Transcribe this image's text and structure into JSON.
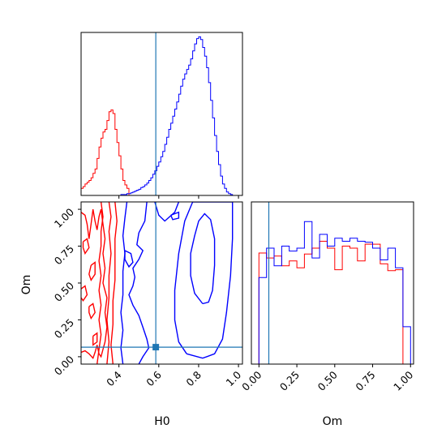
{
  "chart_data": {
    "type": "corner",
    "parameters": [
      "H0",
      "Om"
    ],
    "truth": {
      "H0": 0.585,
      "Om": 0.065
    },
    "colors": {
      "series_a": "#0000ff",
      "series_b": "#ff0000",
      "truth": "#1f77b4"
    },
    "panels": {
      "H0_hist": {
        "xlim": [
          0.21,
          1.02
        ],
        "x_ticks": [
          0.4,
          0.6,
          0.8,
          1.0
        ],
        "bin_edges": [
          0.21,
          0.22,
          0.23,
          0.24,
          0.25,
          0.26,
          0.27,
          0.28,
          0.29,
          0.3,
          0.31,
          0.32,
          0.33,
          0.34,
          0.35,
          0.36,
          0.37,
          0.38,
          0.39,
          0.4,
          0.41,
          0.42,
          0.43,
          0.44,
          0.45,
          0.46,
          0.47,
          0.48,
          0.49,
          0.5,
          0.51,
          0.52,
          0.53,
          0.54,
          0.55,
          0.56,
          0.57,
          0.58,
          0.59,
          0.6,
          0.61,
          0.62,
          0.63,
          0.64,
          0.65,
          0.66,
          0.67,
          0.68,
          0.69,
          0.7,
          0.71,
          0.72,
          0.73,
          0.74,
          0.75,
          0.76,
          0.77,
          0.78,
          0.79,
          0.8,
          0.81,
          0.82,
          0.83,
          0.84,
          0.85,
          0.86,
          0.87,
          0.88,
          0.89,
          0.9,
          0.91,
          0.92,
          0.93,
          0.94,
          0.95,
          0.96,
          0.97,
          0.98,
          0.99,
          1.0,
          1.01,
          1.02
        ],
        "ylim": [
          0,
          185
        ],
        "series_b": [
          8,
          10,
          13,
          15,
          17,
          20,
          25,
          30,
          42,
          55,
          65,
          72,
          75,
          85,
          95,
          97,
          93,
          75,
          60,
          45,
          30,
          17,
          12,
          8,
          0,
          0,
          0,
          0,
          0,
          0,
          0,
          0,
          0,
          0,
          0,
          0,
          0,
          0,
          0,
          0,
          0,
          0,
          0,
          0,
          0,
          0,
          0,
          0,
          0,
          0,
          0,
          0,
          0,
          0,
          0,
          0,
          0,
          0,
          0,
          0,
          0,
          0,
          0,
          0,
          0,
          0,
          0,
          0,
          0,
          0,
          0,
          0,
          0,
          0,
          0,
          0,
          0,
          0,
          0,
          0,
          0
        ],
        "series_a": [
          0,
          0,
          0,
          0,
          0,
          0,
          0,
          0,
          0,
          0,
          0,
          0,
          0,
          0,
          0,
          0,
          0,
          0,
          0,
          0,
          1,
          1,
          1,
          2,
          2,
          3,
          4,
          5,
          6,
          7,
          9,
          10,
          12,
          14,
          17,
          20,
          24,
          28,
          33,
          38,
          44,
          50,
          58,
          66,
          75,
          82,
          90,
          98,
          106,
          115,
          124,
          132,
          138,
          143,
          148,
          155,
          164,
          172,
          178,
          180,
          177,
          168,
          158,
          145,
          128,
          108,
          88,
          68,
          50,
          35,
          22,
          13,
          8,
          4,
          2,
          1,
          0,
          0,
          0,
          0,
          0
        ]
      },
      "Om_hist": {
        "xlim": [
          -0.05,
          1.02
        ],
        "x_ticks": [
          0.0,
          0.25,
          0.5,
          0.75,
          1.0
        ],
        "bin_edges": [
          0.0,
          0.05,
          0.1,
          0.15,
          0.2,
          0.25,
          0.3,
          0.35,
          0.4,
          0.45,
          0.5,
          0.55,
          0.6,
          0.65,
          0.7,
          0.75,
          0.8,
          0.85,
          0.9,
          0.95,
          1.0
        ],
        "ylim": [
          0,
          165
        ],
        "series_a": [
          88,
          118,
          100,
          120,
          115,
          118,
          145,
          108,
          132,
          120,
          128,
          125,
          128,
          125,
          124,
          118,
          106,
          118,
          98,
          38
        ],
        "series_b": [
          113,
          108,
          110,
          100,
          105,
          98,
          112,
          118,
          125,
          118,
          96,
          120,
          118,
          105,
          122,
          122,
          102,
          95,
          96,
          0
        ]
      },
      "H0_Om_contour": {
        "xlim": [
          0.21,
          1.02
        ],
        "ylim": [
          -0.05,
          1.05
        ],
        "series_a_contours": [
          [
            [
              0.82,
              0.36
            ],
            [
              0.78,
              0.43
            ],
            [
              0.76,
              0.55
            ],
            [
              0.76,
              0.7
            ],
            [
              0.78,
              0.82
            ],
            [
              0.8,
              0.92
            ],
            [
              0.83,
              0.97
            ],
            [
              0.86,
              0.93
            ],
            [
              0.88,
              0.8
            ],
            [
              0.88,
              0.62
            ],
            [
              0.87,
              0.45
            ],
            [
              0.85,
              0.37
            ],
            [
              0.82,
              0.36
            ]
          ],
          [
            [
              0.74,
              0.02
            ],
            [
              0.7,
              0.1
            ],
            [
              0.68,
              0.25
            ],
            [
              0.68,
              0.45
            ],
            [
              0.7,
              0.7
            ],
            [
              0.73,
              0.92
            ],
            [
              0.77,
              1.05
            ],
            [
              0.97,
              1.05
            ],
            [
              0.97,
              0.8
            ],
            [
              0.96,
              0.55
            ],
            [
              0.94,
              0.3
            ],
            [
              0.92,
              0.12
            ],
            [
              0.88,
              0.02
            ],
            [
              0.82,
              -0.01
            ],
            [
              0.74,
              0.02
            ]
          ],
          [
            [
              0.54,
              1.05
            ],
            [
              0.53,
              0.92
            ],
            [
              0.5,
              0.84
            ],
            [
              0.49,
              0.76
            ],
            [
              0.52,
              0.72
            ],
            [
              0.5,
              0.66
            ],
            [
              0.47,
              0.6
            ],
            [
              0.48,
              0.54
            ],
            [
              0.47,
              0.48
            ],
            [
              0.45,
              0.42
            ],
            [
              0.47,
              0.35
            ],
            [
              0.5,
              0.28
            ],
            [
              0.52,
              0.2
            ],
            [
              0.54,
              0.12
            ],
            [
              0.55,
              0.06
            ],
            [
              0.52,
              0.0
            ],
            [
              0.5,
              -0.05
            ]
          ],
          [
            [
              0.44,
              1.05
            ],
            [
              0.43,
              0.94
            ],
            [
              0.42,
              0.82
            ],
            [
              0.43,
              0.7
            ],
            [
              0.42,
              0.58
            ],
            [
              0.42,
              0.42
            ],
            [
              0.41,
              0.3
            ],
            [
              0.42,
              0.18
            ],
            [
              0.41,
              0.06
            ],
            [
              0.42,
              -0.05
            ]
          ],
          [
            [
              0.43,
              0.72
            ],
            [
              0.46,
              0.7
            ],
            [
              0.47,
              0.64
            ],
            [
              0.45,
              0.61
            ],
            [
              0.43,
              0.66
            ],
            [
              0.43,
              0.72
            ]
          ],
          [
            [
              0.58,
              1.05
            ],
            [
              0.6,
              0.96
            ],
            [
              0.63,
              0.92
            ],
            [
              0.68,
              0.98
            ],
            [
              0.7,
              1.05
            ]
          ],
          [
            [
              0.66,
              0.96
            ],
            [
              0.7,
              0.98
            ],
            [
              0.7,
              0.94
            ],
            [
              0.67,
              0.93
            ],
            [
              0.66,
              0.96
            ]
          ]
        ],
        "series_b_contours": [
          [
            [
              0.21,
              0.98
            ],
            [
              0.23,
              0.96
            ],
            [
              0.24,
              0.9
            ],
            [
              0.25,
              0.8
            ],
            [
              0.26,
              0.9
            ],
            [
              0.27,
              1.0
            ],
            [
              0.28,
              0.92
            ],
            [
              0.29,
              0.86
            ],
            [
              0.3,
              0.95
            ],
            [
              0.31,
              1.0
            ],
            [
              0.32,
              0.9
            ],
            [
              0.33,
              0.8
            ],
            [
              0.32,
              0.7
            ],
            [
              0.33,
              0.6
            ],
            [
              0.32,
              0.5
            ],
            [
              0.34,
              0.4
            ],
            [
              0.33,
              0.3
            ],
            [
              0.34,
              0.2
            ],
            [
              0.33,
              0.1
            ],
            [
              0.32,
              0.05
            ],
            [
              0.31,
              0.0
            ],
            [
              0.3,
              0.02
            ],
            [
              0.29,
              0.08
            ],
            [
              0.28,
              0.03
            ],
            [
              0.27,
              -0.01
            ],
            [
              0.25,
              0.02
            ],
            [
              0.23,
              0.04
            ],
            [
              0.21,
              0.03
            ]
          ],
          [
            [
              0.31,
              1.05
            ],
            [
              0.32,
              0.95
            ],
            [
              0.31,
              0.85
            ],
            [
              0.31,
              0.75
            ],
            [
              0.3,
              0.65
            ],
            [
              0.31,
              0.55
            ],
            [
              0.3,
              0.45
            ],
            [
              0.31,
              0.35
            ],
            [
              0.3,
              0.25
            ],
            [
              0.31,
              0.15
            ],
            [
              0.3,
              0.05
            ],
            [
              0.29,
              -0.05
            ]
          ],
          [
            [
              0.35,
              1.05
            ],
            [
              0.36,
              0.95
            ],
            [
              0.35,
              0.85
            ],
            [
              0.36,
              0.7
            ],
            [
              0.35,
              0.55
            ],
            [
              0.35,
              0.4
            ],
            [
              0.34,
              0.25
            ],
            [
              0.35,
              0.1
            ],
            [
              0.34,
              -0.05
            ]
          ],
          [
            [
              0.38,
              1.05
            ],
            [
              0.39,
              0.92
            ],
            [
              0.38,
              0.8
            ],
            [
              0.38,
              0.66
            ],
            [
              0.38,
              0.52
            ],
            [
              0.37,
              0.38
            ],
            [
              0.37,
              0.22
            ],
            [
              0.36,
              0.08
            ],
            [
              0.37,
              -0.05
            ]
          ],
          [
            [
              0.26,
              0.62
            ],
            [
              0.28,
              0.64
            ],
            [
              0.28,
              0.56
            ],
            [
              0.26,
              0.52
            ],
            [
              0.25,
              0.56
            ],
            [
              0.26,
              0.62
            ]
          ],
          [
            [
              0.25,
              0.34
            ],
            [
              0.27,
              0.36
            ],
            [
              0.28,
              0.3
            ],
            [
              0.26,
              0.26
            ],
            [
              0.25,
              0.3
            ],
            [
              0.25,
              0.34
            ]
          ],
          [
            [
              0.27,
              0.14
            ],
            [
              0.29,
              0.16
            ],
            [
              0.29,
              0.1
            ],
            [
              0.27,
              0.08
            ],
            [
              0.27,
              0.14
            ]
          ],
          [
            [
              0.22,
              0.78
            ],
            [
              0.24,
              0.8
            ],
            [
              0.25,
              0.74
            ],
            [
              0.23,
              0.7
            ],
            [
              0.22,
              0.74
            ],
            [
              0.22,
              0.78
            ]
          ],
          [
            [
              0.21,
              0.46
            ],
            [
              0.23,
              0.48
            ],
            [
              0.24,
              0.42
            ],
            [
              0.22,
              0.38
            ],
            [
              0.21,
              0.4
            ]
          ]
        ],
        "y_ticks": [
          0.0,
          0.25,
          0.5,
          0.75,
          1.0
        ],
        "x_ticks": [
          0.4,
          0.6,
          0.8,
          1.0
        ]
      }
    },
    "labels": {
      "x_H0": "H0",
      "x_Om": "Om",
      "y_Om": "Om"
    },
    "tick_text": {
      "H0": [
        "0.4",
        "0.6",
        "0.8",
        "1.0"
      ],
      "Om": [
        "0.00",
        "0.25",
        "0.50",
        "0.75",
        "1.00"
      ]
    }
  }
}
